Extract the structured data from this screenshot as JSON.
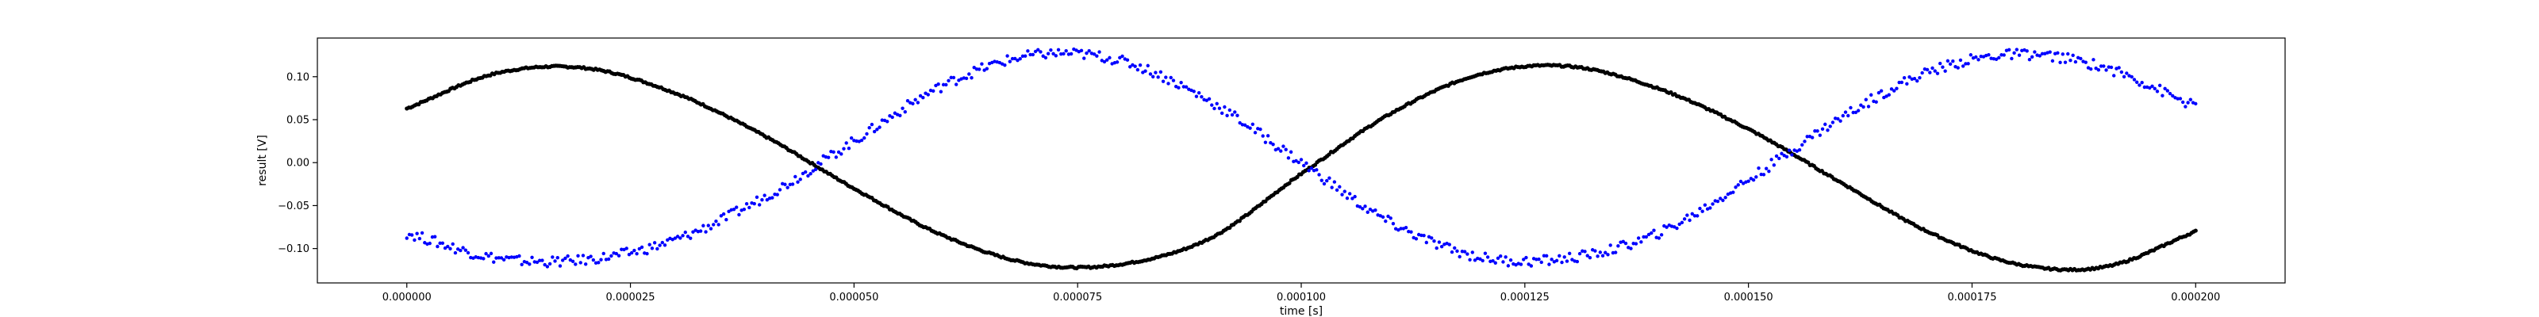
{
  "chart_data": {
    "type": "scatter",
    "title": "",
    "xlabel": "time [s]",
    "ylabel": "result [V]",
    "xlim": [
      -1e-05,
      0.00021
    ],
    "ylim": [
      -0.14,
      0.145
    ],
    "grid": false,
    "x_ticks": [
      {
        "value": 0.0,
        "label": "0.000000"
      },
      {
        "value": 2.5e-05,
        "label": "0.000025"
      },
      {
        "value": 5e-05,
        "label": "0.000050"
      },
      {
        "value": 7.5e-05,
        "label": "0.000075"
      },
      {
        "value": 0.0001,
        "label": "0.000100"
      },
      {
        "value": 0.000125,
        "label": "0.000125"
      },
      {
        "value": 0.00015,
        "label": "0.000150"
      },
      {
        "value": 0.000175,
        "label": "0.000175"
      },
      {
        "value": 0.0002,
        "label": "0.000200"
      }
    ],
    "y_ticks": [
      {
        "value": 0.1,
        "label": "0.10"
      },
      {
        "value": 0.05,
        "label": "0.05"
      },
      {
        "value": 0.0,
        "label": "0.00"
      },
      {
        "value": -0.05,
        "label": "−0.05"
      },
      {
        "value": -0.1,
        "label": "−0.10"
      }
    ],
    "series": [
      {
        "color": "#000000",
        "x": [
          0.0,
          1e-05,
          2e-05,
          3e-05,
          4e-05,
          5e-05,
          6e-05,
          7e-05,
          8e-05,
          9e-05,
          0.0001,
          0.00011,
          0.00012,
          0.00013,
          0.00014,
          0.00015,
          0.00016,
          0.00017,
          0.00018,
          0.00019,
          0.0002
        ],
        "y": [
          0.063,
          0.104,
          0.11,
          0.081,
          0.031,
          -0.03,
          -0.085,
          -0.118,
          -0.118,
          -0.087,
          -0.013,
          0.057,
          0.103,
          0.112,
          0.086,
          0.039,
          -0.021,
          -0.08,
          -0.118,
          -0.121,
          -0.08
        ]
      },
      {
        "color": "#0000ff",
        "x": [
          0.0,
          1e-05,
          2e-05,
          3e-05,
          4e-05,
          5e-05,
          6e-05,
          7e-05,
          8e-05,
          9e-05,
          0.0001,
          0.00011,
          0.00012,
          0.00013,
          0.00014,
          0.00015,
          0.00016,
          0.00017,
          0.00018,
          0.00019,
          0.0002
        ],
        "y": [
          -0.082,
          -0.111,
          -0.113,
          -0.09,
          -0.04,
          0.025,
          0.09,
          0.125,
          0.118,
          0.07,
          0.0,
          -0.07,
          -0.11,
          -0.111,
          -0.082,
          -0.02,
          0.05,
          0.105,
          0.126,
          0.11,
          0.065
        ]
      }
    ]
  }
}
